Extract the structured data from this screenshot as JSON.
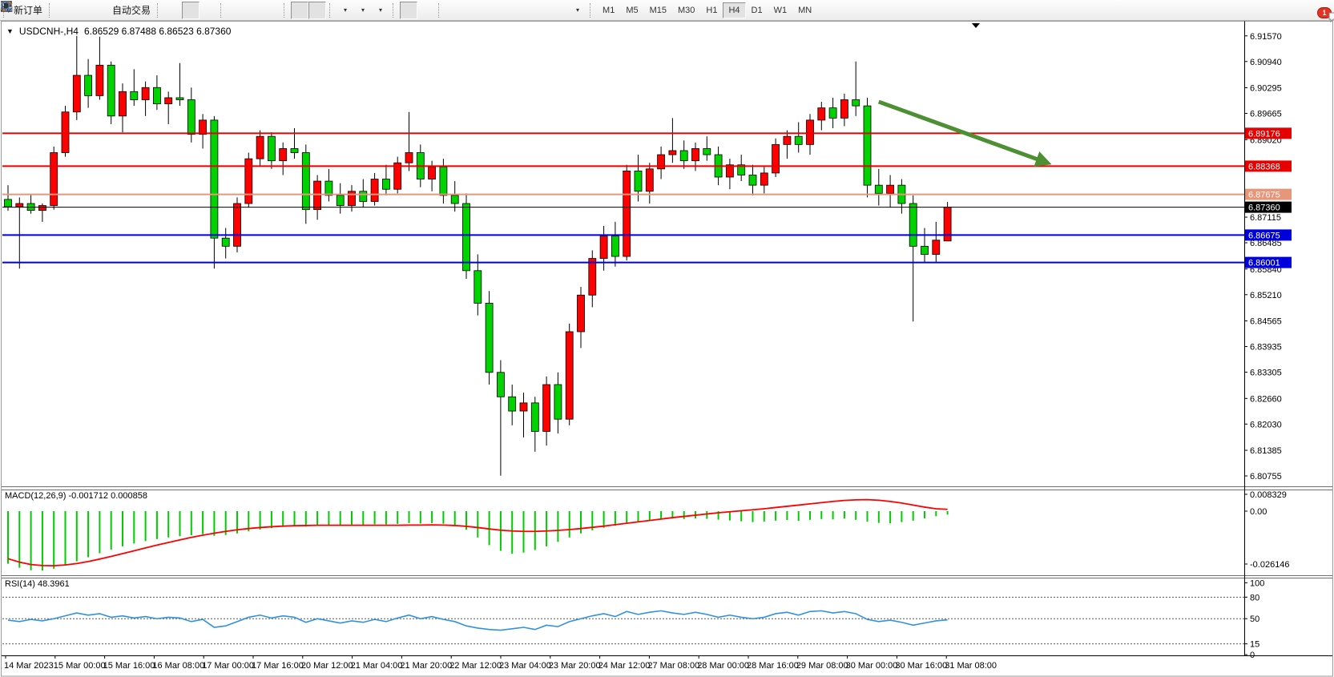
{
  "icons": {
    "triangle_down": "▼",
    "caret_down": "▾"
  },
  "toolbar": {
    "groups": [
      {
        "items": [
          {
            "icon": "new-order",
            "name": "new-order-button",
            "label": "新订单"
          }
        ]
      },
      {
        "items": [
          {
            "icon": "symbols",
            "name": "symbols-button"
          },
          {
            "icon": "data-window",
            "name": "data-window-button"
          },
          {
            "icon": "navigator",
            "name": "navigator-button"
          },
          {
            "icon": "autotrading",
            "name": "autotrading-button",
            "label": "自动交易"
          }
        ]
      },
      {
        "items": [
          {
            "icon": "bar-chart",
            "name": "bar-chart-button"
          },
          {
            "icon": "candlestick",
            "name": "candlestick-button",
            "active": true
          },
          {
            "icon": "line-chart",
            "name": "line-chart-button"
          }
        ]
      },
      {
        "items": [
          {
            "icon": "zoom-in",
            "name": "zoom-in-button"
          },
          {
            "icon": "zoom-out",
            "name": "zoom-out-button"
          },
          {
            "icon": "tile-windows",
            "name": "tile-windows-button"
          }
        ]
      },
      {
        "items": [
          {
            "icon": "autoscroll",
            "name": "autoscroll-button",
            "active": true
          },
          {
            "icon": "chart-shift",
            "name": "chart-shift-button",
            "active": true
          }
        ]
      },
      {
        "items": [
          {
            "icon": "indicators",
            "name": "indicators-button",
            "caret": true
          },
          {
            "icon": "periods",
            "name": "periods-button",
            "caret": true
          },
          {
            "icon": "templates",
            "name": "templates-button",
            "caret": true
          }
        ]
      },
      {
        "items": [
          {
            "icon": "cursor",
            "name": "cursor-button",
            "active": true
          },
          {
            "icon": "crosshair",
            "name": "crosshair-button"
          }
        ]
      },
      {
        "items": [
          {
            "icon": "vline",
            "name": "vertical-line-button"
          },
          {
            "icon": "hline",
            "name": "horizontal-line-button"
          },
          {
            "icon": "trendline",
            "name": "trendline-button"
          },
          {
            "icon": "channel",
            "name": "equidistant-channel-button"
          },
          {
            "icon": "fibonacci",
            "name": "fibonacci-button"
          },
          {
            "icon": "text",
            "name": "text-button"
          },
          {
            "icon": "label",
            "name": "text-label-button"
          },
          {
            "icon": "arrows",
            "name": "arrows-button",
            "caret": true
          }
        ]
      }
    ],
    "timeframes": [
      "M1",
      "M5",
      "M15",
      "M30",
      "H1",
      "H4",
      "D1",
      "W1",
      "MN"
    ],
    "active_timeframe": "H4",
    "notification_count": "1"
  },
  "chart_data": [
    {
      "type": "candlestick",
      "symbol_title": "USDCNH-,H4",
      "ohlc_text": "6.86529 6.87488 6.86523 6.87360",
      "current_ohlc": {
        "open": "6.86529",
        "high": "6.87488",
        "low": "6.86523",
        "close": "6.87360"
      },
      "y_range": {
        "top": 6.919,
        "bottom": 6.805
      },
      "colors": {
        "up": "#ff0000",
        "down": "#00d300",
        "wick": "#000000",
        "border": "#000000"
      },
      "y_ticks": [
        "6.91570",
        "6.90940",
        "6.90295",
        "6.89665",
        "6.89020",
        "6.87115",
        "6.86485",
        "6.85840",
        "6.85210",
        "6.84565",
        "6.83935",
        "6.83305",
        "6.82660",
        "6.82030",
        "6.81385",
        "6.80755"
      ],
      "hlines": [
        {
          "price": 6.89176,
          "label": "6.89176",
          "color": "#e60000",
          "width": 2
        },
        {
          "price": 6.88368,
          "label": "6.88368",
          "color": "#e60000",
          "width": 2
        },
        {
          "price": 6.87675,
          "label": "6.87675",
          "color": "#e8967a",
          "width": 2
        },
        {
          "price": 6.8736,
          "label": "6.87360",
          "color": "#000000",
          "width": 1,
          "role": "current-price"
        },
        {
          "price": 6.86675,
          "label": "6.86675",
          "color": "#0000dd",
          "width": 2
        },
        {
          "price": 6.86001,
          "label": "6.86001",
          "color": "#0000dd",
          "width": 2
        }
      ],
      "x_labels": [
        "14 Mar 2023",
        "15 Mar 00:00",
        "15 Mar 16:00",
        "16 Mar 08:00",
        "17 Mar 00:00",
        "17 Mar 16:00",
        "20 Mar 12:00",
        "21 Mar 04:00",
        "21 Mar 20:00",
        "22 Mar 12:00",
        "23 Mar 04:00",
        "23 Mar 20:00",
        "24 Mar 12:00",
        "27 Mar 08:00",
        "28 Mar 00:00",
        "28 Mar 16:00",
        "29 Mar 08:00",
        "30 Mar 00:00",
        "30 Mar 16:00",
        "31 Mar 08:00"
      ],
      "annotations": [
        {
          "type": "arrow",
          "from": {
            "index": 76,
            "price": 6.8995
          },
          "to": {
            "index": 90.5,
            "price": 6.8847
          },
          "color": "#4d8f33",
          "width": 5
        }
      ],
      "candles": [
        [
          6.8755,
          6.879,
          6.8727,
          6.8737
        ],
        [
          6.8737,
          6.876,
          6.8585,
          6.8745
        ],
        [
          6.8745,
          6.8768,
          6.872,
          6.8728
        ],
        [
          6.8728,
          6.8745,
          6.87,
          6.874
        ],
        [
          6.874,
          6.8885,
          6.873,
          6.887
        ],
        [
          6.887,
          6.8985,
          6.886,
          6.897
        ],
        [
          6.897,
          6.9157,
          6.895,
          6.906
        ],
        [
          6.906,
          6.91,
          6.898,
          6.901
        ],
        [
          6.901,
          6.9155,
          6.9,
          6.9085
        ],
        [
          6.9085,
          6.9094,
          6.894,
          6.896
        ],
        [
          6.896,
          6.904,
          6.892,
          6.902
        ],
        [
          6.902,
          6.9075,
          6.8985,
          6.9
        ],
        [
          6.9,
          6.9045,
          6.896,
          6.903
        ],
        [
          6.903,
          6.906,
          6.8975,
          6.899
        ],
        [
          6.899,
          6.902,
          6.894,
          6.9005
        ],
        [
          6.9005,
          6.909,
          6.8985,
          6.9
        ],
        [
          6.9,
          6.903,
          6.8895,
          6.8915
        ],
        [
          6.8915,
          6.8965,
          6.888,
          6.895
        ],
        [
          6.895,
          6.896,
          6.8585,
          6.866
        ],
        [
          6.866,
          6.8685,
          6.861,
          6.864
        ],
        [
          6.864,
          6.876,
          6.8625,
          6.8745
        ],
        [
          6.8745,
          6.887,
          6.8735,
          6.8855
        ],
        [
          6.8855,
          6.8925,
          6.8835,
          6.891
        ],
        [
          6.891,
          6.892,
          6.883,
          6.885
        ],
        [
          6.885,
          6.8895,
          6.8815,
          6.888
        ],
        [
          6.888,
          6.893,
          6.8855,
          6.887
        ],
        [
          6.887,
          6.889,
          6.8695,
          6.873
        ],
        [
          6.873,
          6.8815,
          6.8705,
          6.88
        ],
        [
          6.88,
          6.883,
          6.875,
          6.8765
        ],
        [
          6.8765,
          6.8795,
          6.872,
          6.874
        ],
        [
          6.874,
          6.879,
          6.8725,
          6.8775
        ],
        [
          6.8775,
          6.8805,
          6.8735,
          6.875
        ],
        [
          6.875,
          6.882,
          6.874,
          6.8805
        ],
        [
          6.8805,
          6.884,
          6.8765,
          6.878
        ],
        [
          6.878,
          6.886,
          6.877,
          6.8845
        ],
        [
          6.8845,
          6.897,
          6.8825,
          6.887
        ],
        [
          6.887,
          6.889,
          6.8785,
          6.8805
        ],
        [
          6.8805,
          6.885,
          6.8775,
          6.8835
        ],
        [
          6.8835,
          6.8855,
          6.8745,
          6.8765
        ],
        [
          6.8765,
          6.88,
          6.8725,
          6.8745
        ],
        [
          6.8745,
          6.877,
          6.856,
          6.858
        ],
        [
          6.858,
          6.862,
          6.847,
          6.85
        ],
        [
          6.85,
          6.853,
          6.83,
          6.833
        ],
        [
          6.833,
          6.836,
          6.8076,
          6.827
        ],
        [
          6.827,
          6.83,
          6.82,
          6.8235
        ],
        [
          6.8235,
          6.828,
          6.817,
          6.8255
        ],
        [
          6.8255,
          6.827,
          6.8135,
          6.8185
        ],
        [
          6.8185,
          6.832,
          6.815,
          6.83
        ],
        [
          6.83,
          6.833,
          6.818,
          6.8215
        ],
        [
          6.8215,
          6.845,
          6.82,
          6.843
        ],
        [
          6.843,
          6.854,
          6.839,
          6.852
        ],
        [
          6.852,
          6.863,
          6.849,
          6.861
        ],
        [
          6.861,
          6.869,
          6.858,
          6.8665
        ],
        [
          6.8665,
          6.87,
          6.859,
          6.8615
        ],
        [
          6.8615,
          6.884,
          6.8605,
          6.8825
        ],
        [
          6.8825,
          6.8865,
          6.875,
          6.8775
        ],
        [
          6.8775,
          6.8845,
          6.8745,
          6.883
        ],
        [
          6.883,
          6.8885,
          6.8805,
          6.8865
        ],
        [
          6.8865,
          6.8955,
          6.8845,
          6.8875
        ],
        [
          6.8875,
          6.89,
          6.883,
          6.885
        ],
        [
          6.885,
          6.8895,
          6.8825,
          6.888
        ],
        [
          6.888,
          6.891,
          6.885,
          6.8865
        ],
        [
          6.8865,
          6.8885,
          6.879,
          6.881
        ],
        [
          6.881,
          6.8855,
          6.878,
          6.884
        ],
        [
          6.884,
          6.8865,
          6.88,
          6.8815
        ],
        [
          6.8815,
          6.884,
          6.8765,
          6.879
        ],
        [
          6.879,
          6.8835,
          6.877,
          6.882
        ],
        [
          6.882,
          6.8905,
          6.881,
          6.889
        ],
        [
          6.889,
          6.8925,
          6.8855,
          6.891
        ],
        [
          6.891,
          6.8945,
          6.887,
          6.889
        ],
        [
          6.889,
          6.8965,
          6.8865,
          6.895
        ],
        [
          6.895,
          6.8995,
          6.8925,
          6.898
        ],
        [
          6.898,
          6.9005,
          6.893,
          6.8955
        ],
        [
          6.8955,
          6.9015,
          6.8935,
          6.9
        ],
        [
          6.9,
          6.9094,
          6.896,
          6.8985
        ],
        [
          6.8985,
          6.9005,
          6.876,
          6.879
        ],
        [
          6.879,
          6.883,
          6.874,
          6.877
        ],
        [
          6.877,
          6.8815,
          6.8735,
          6.879
        ],
        [
          6.879,
          6.8805,
          6.872,
          6.8745
        ],
        [
          6.8745,
          6.8765,
          6.8455,
          6.864
        ],
        [
          6.864,
          6.8685,
          6.86,
          6.862
        ],
        [
          6.862,
          6.87,
          6.8601,
          6.8655
        ],
        [
          6.86529,
          6.87488,
          6.86523,
          6.8736
        ]
      ]
    },
    {
      "type": "macd",
      "title": "MACD(12,26,9)",
      "values_text": "-0.001712 0.000858",
      "y_ticks": [
        "0.008329",
        "0.00",
        "-0.026146"
      ],
      "y_range": {
        "top": 0.0103,
        "bottom": -0.0317
      },
      "colors": {
        "histogram": "#00cc00",
        "signal": "#ff0000"
      },
      "histogram": [
        -0.026,
        -0.028,
        -0.0292,
        -0.0294,
        -0.0285,
        -0.0268,
        -0.0248,
        -0.0228,
        -0.0208,
        -0.019,
        -0.0174,
        -0.016,
        -0.0148,
        -0.0138,
        -0.013,
        -0.0124,
        -0.0119,
        -0.0114,
        -0.0122,
        -0.0118,
        -0.011,
        -0.01,
        -0.0091,
        -0.0084,
        -0.0078,
        -0.0073,
        -0.0076,
        -0.0071,
        -0.0069,
        -0.007,
        -0.0067,
        -0.0068,
        -0.0065,
        -0.0066,
        -0.0063,
        -0.0059,
        -0.0061,
        -0.0059,
        -0.0062,
        -0.007,
        -0.0092,
        -0.013,
        -0.0168,
        -0.0196,
        -0.021,
        -0.0205,
        -0.0192,
        -0.0174,
        -0.0152,
        -0.013,
        -0.011,
        -0.0095,
        -0.0082,
        -0.0072,
        -0.0061,
        -0.0053,
        -0.0046,
        -0.0041,
        -0.0037,
        -0.0039,
        -0.0036,
        -0.0038,
        -0.0042,
        -0.0046,
        -0.005,
        -0.0054,
        -0.0051,
        -0.0047,
        -0.0044,
        -0.0048,
        -0.0043,
        -0.0039,
        -0.0041,
        -0.0037,
        -0.0043,
        -0.0052,
        -0.0058,
        -0.006,
        -0.0054,
        -0.0047,
        -0.0036,
        -0.0025,
        -0.0017
      ],
      "signal": [
        -0.0235,
        -0.0252,
        -0.0264,
        -0.0269,
        -0.027,
        -0.0266,
        -0.0259,
        -0.0249,
        -0.0237,
        -0.0224,
        -0.021,
        -0.0196,
        -0.0182,
        -0.0168,
        -0.0155,
        -0.0142,
        -0.013,
        -0.0119,
        -0.0109,
        -0.01,
        -0.0092,
        -0.0086,
        -0.0081,
        -0.0077,
        -0.0074,
        -0.0072,
        -0.0071,
        -0.007,
        -0.007,
        -0.007,
        -0.007,
        -0.007,
        -0.007,
        -0.007,
        -0.007,
        -0.0069,
        -0.0069,
        -0.0068,
        -0.0069,
        -0.0071,
        -0.0075,
        -0.0081,
        -0.0088,
        -0.0094,
        -0.0098,
        -0.01,
        -0.01,
        -0.0098,
        -0.0095,
        -0.0091,
        -0.0086,
        -0.008,
        -0.0074,
        -0.0067,
        -0.006,
        -0.0053,
        -0.0046,
        -0.0039,
        -0.0032,
        -0.0026,
        -0.002,
        -0.0014,
        -0.0008,
        -0.0003,
        0.0002,
        0.0007,
        0.0012,
        0.0018,
        0.0024,
        0.003,
        0.0036,
        0.0042,
        0.0048,
        0.0053,
        0.0056,
        0.0057,
        0.0054,
        0.0048,
        0.004,
        0.003,
        0.002,
        0.0012,
        0.0009
      ]
    },
    {
      "type": "rsi",
      "title": "RSI(14)",
      "value_text": "48.3961",
      "levels": [
        80,
        50,
        15
      ],
      "y_ticks": [
        "100",
        "80",
        "50",
        "15",
        "0"
      ],
      "y_range": {
        "top": 106,
        "bottom": -1
      },
      "color": "#2f92e0",
      "values": [
        48,
        46,
        49,
        47,
        50,
        54,
        58,
        55,
        57,
        52,
        54,
        51,
        53,
        50,
        52,
        51,
        46,
        49,
        38,
        40,
        46,
        52,
        55,
        51,
        54,
        52,
        45,
        50,
        47,
        44,
        47,
        45,
        49,
        46,
        51,
        55,
        50,
        53,
        49,
        46,
        40,
        37,
        35,
        34,
        36,
        38,
        35,
        41,
        39,
        46,
        50,
        54,
        57,
        53,
        60,
        56,
        59,
        61,
        58,
        56,
        59,
        56,
        52,
        55,
        52,
        50,
        52,
        57,
        59,
        55,
        60,
        61,
        58,
        60,
        57,
        49,
        46,
        48,
        45,
        41,
        44,
        47,
        48.4
      ]
    }
  ]
}
